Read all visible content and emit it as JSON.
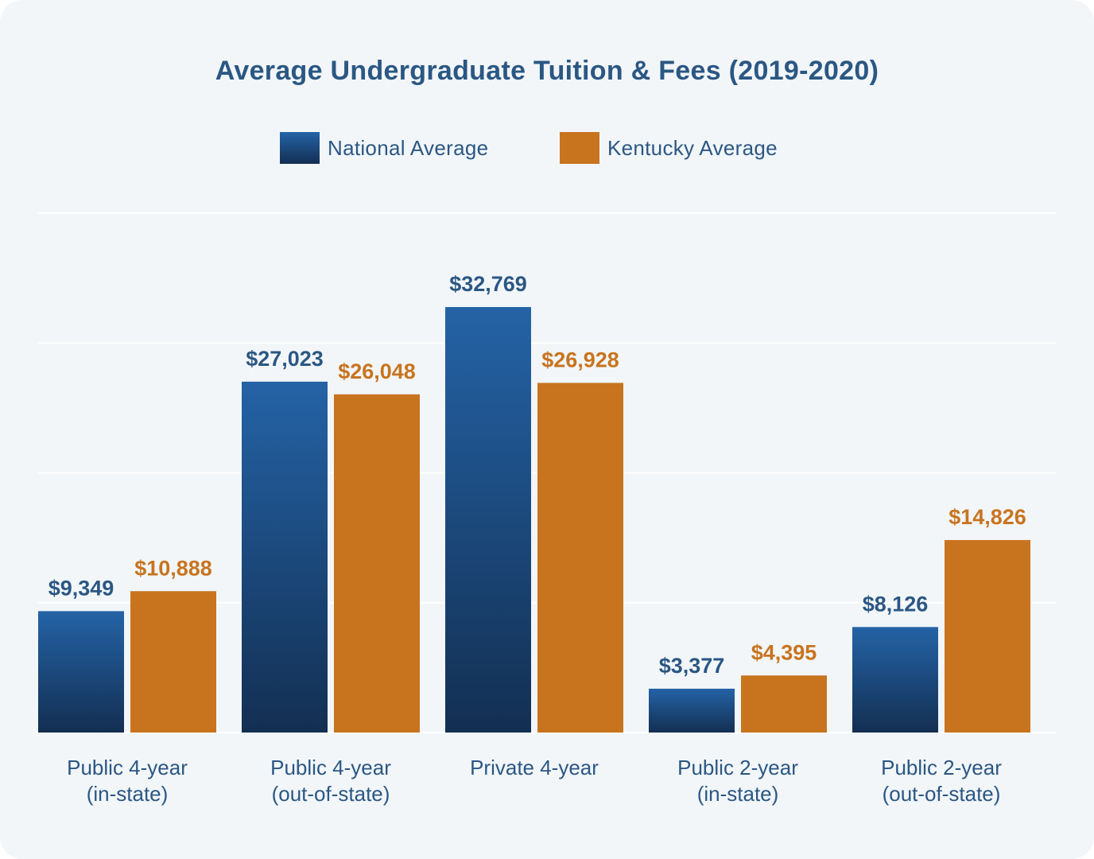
{
  "chart_data": {
    "type": "bar",
    "title": "Average Undergraduate Tuition & Fees (2019-2020)",
    "categories": [
      [
        "Public 4-year",
        "(in-state)"
      ],
      [
        "Public 4-year",
        "(out-of-state)"
      ],
      [
        "Private 4-year"
      ],
      [
        "Public 2-year",
        "(in-state)"
      ],
      [
        "Public 2-year",
        "(out-of-state)"
      ]
    ],
    "series": [
      {
        "name": "National Average",
        "values": [
          9349,
          27023,
          32769,
          3377,
          8126
        ],
        "labels": [
          "$9,349",
          "$27,023",
          "$32,769",
          "$3,377",
          "$8,126"
        ],
        "color": "#2463a6"
      },
      {
        "name": "Kentucky Average",
        "values": [
          10888,
          26048,
          26928,
          4395,
          14826
        ],
        "labels": [
          "$10,888",
          "$26,048",
          "$26,928",
          "$4,395",
          "$14,826"
        ],
        "color": "#c8741f"
      }
    ],
    "ylim": [
      0,
      40000
    ],
    "grid": true,
    "legend_position": "top-center",
    "xlabel": "",
    "ylabel": ""
  },
  "colors": {
    "national_top": "#2463a6",
    "national_bottom": "#132f52",
    "kentucky": "#c8741f",
    "text": "#2b5783",
    "grid": "#ffffff"
  }
}
